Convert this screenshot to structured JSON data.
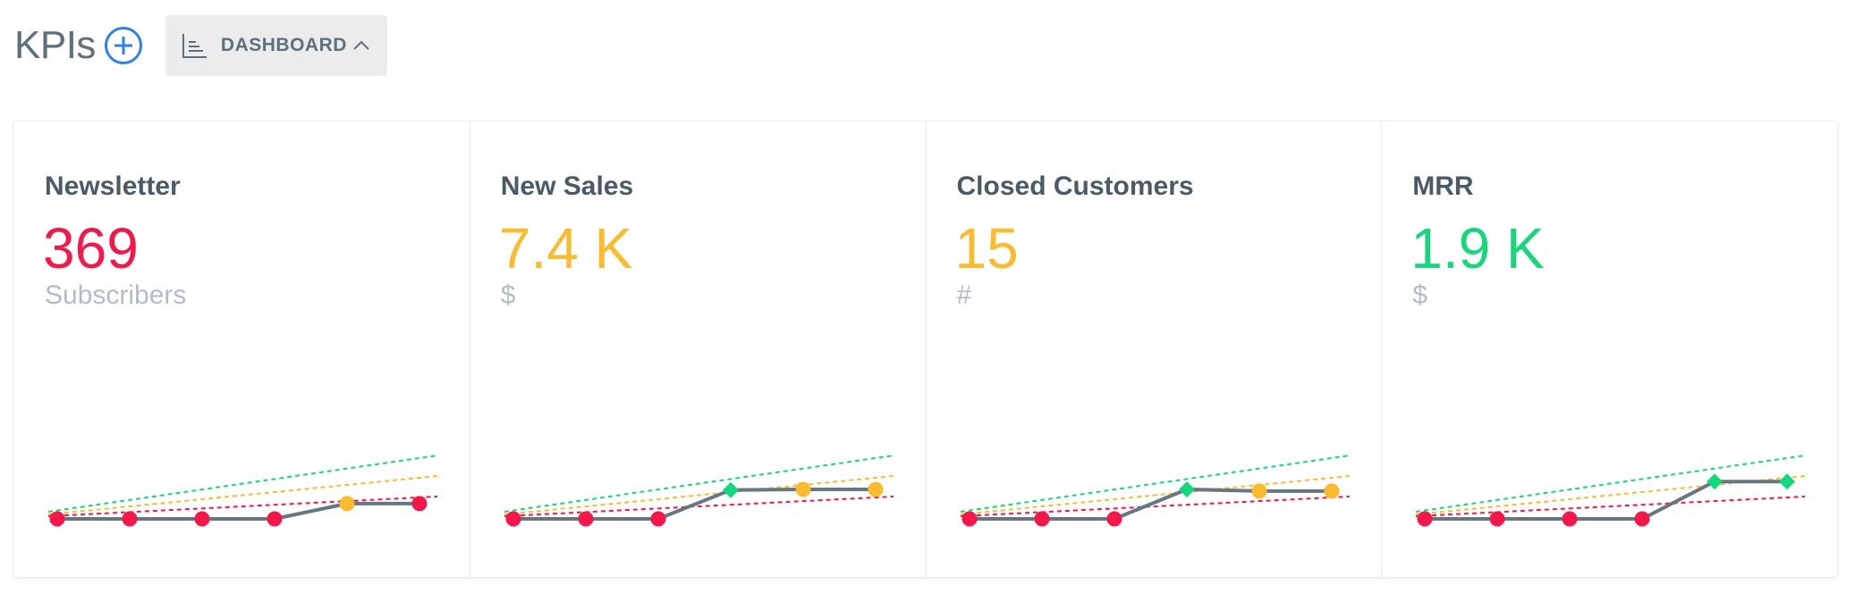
{
  "header": {
    "title": "KPIs",
    "add_icon": "plus-circle-icon",
    "dashboard_label": "DASHBOARD",
    "dashboard_icon": "bar-chart-icon",
    "chevron_icon": "chevron-up-icon"
  },
  "colors": {
    "red": "#f5174a",
    "yellow": "#fcbb2c",
    "green": "#13d97b",
    "line": "#647783"
  },
  "cards": [
    {
      "title": "Newsletter",
      "value": "369",
      "unit": "Subscribers",
      "value_color": "#f5174a",
      "points": [
        {
          "y": 0,
          "status": "red"
        },
        {
          "y": 0,
          "status": "red"
        },
        {
          "y": 0,
          "status": "red"
        },
        {
          "y": 0,
          "status": "red"
        },
        {
          "y": 0.45,
          "status": "yellow"
        },
        {
          "y": 0.45,
          "status": "red"
        }
      ]
    },
    {
      "title": "New Sales",
      "value": "7.4 K",
      "unit": "$",
      "value_color": "#fcbb2c",
      "points": [
        {
          "y": 0,
          "status": "red"
        },
        {
          "y": 0,
          "status": "red"
        },
        {
          "y": 0,
          "status": "red"
        },
        {
          "y": 0.85,
          "status": "green"
        },
        {
          "y": 0.87,
          "status": "yellow"
        },
        {
          "y": 0.87,
          "status": "yellow"
        }
      ]
    },
    {
      "title": "Closed Customers",
      "value": "15",
      "unit": "#",
      "value_color": "#fcbb2c",
      "points": [
        {
          "y": 0,
          "status": "red"
        },
        {
          "y": 0,
          "status": "red"
        },
        {
          "y": 0,
          "status": "red"
        },
        {
          "y": 0.87,
          "status": "green"
        },
        {
          "y": 0.82,
          "status": "yellow"
        },
        {
          "y": 0.82,
          "status": "yellow"
        }
      ]
    },
    {
      "title": "MRR",
      "value": "1.9 K",
      "unit": "$",
      "value_color": "#13d97b",
      "points": [
        {
          "y": 0,
          "status": "red"
        },
        {
          "y": 0,
          "status": "red"
        },
        {
          "y": 0,
          "status": "red"
        },
        {
          "y": 0,
          "status": "red"
        },
        {
          "y": 1.1,
          "status": "green"
        },
        {
          "y": 1.1,
          "status": "green"
        }
      ]
    }
  ]
}
